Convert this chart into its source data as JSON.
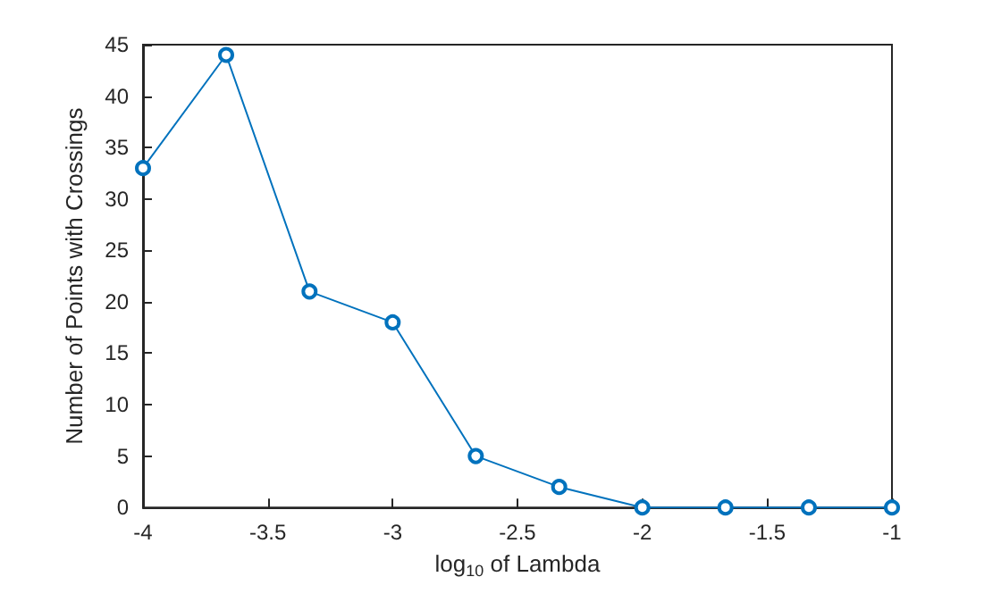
{
  "chart_data": {
    "type": "line",
    "xlabel": "log$_{10}$ of Lambda",
    "ylabel": "Number of Points with Crossings",
    "x": [
      -4,
      -3.667,
      -3.333,
      -3,
      -2.667,
      -2.333,
      -2,
      -1.667,
      -1.333,
      -1
    ],
    "series": [
      {
        "color": "#0072bd",
        "values": [
          33,
          44,
          21,
          18,
          5,
          2,
          0,
          0,
          0,
          0
        ]
      }
    ],
    "xlim": [
      -4,
      -1
    ],
    "xticks": [
      -4,
      -3.5,
      -3,
      -2.5,
      -2,
      -1.5,
      -1
    ],
    "ylim": [
      0,
      45
    ],
    "yticks": [
      0,
      5,
      10,
      15,
      20,
      25,
      30,
      35,
      40,
      45
    ],
    "grid": false,
    "marker": "circle",
    "line_style": "solid"
  }
}
